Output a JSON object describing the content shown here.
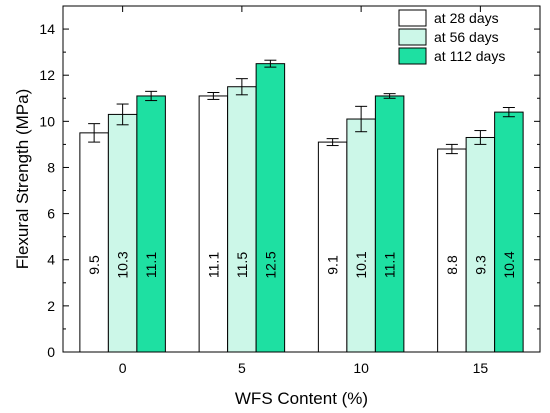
{
  "chart_data": {
    "type": "bar",
    "xlabel": "WFS Content (%)",
    "ylabel": "Flexural Strength (MPa)",
    "ylim": [
      0,
      15
    ],
    "yticks": [
      0,
      2,
      4,
      6,
      8,
      10,
      12,
      14
    ],
    "categories": [
      "0",
      "5",
      "10",
      "15"
    ],
    "legend_position": "top-right",
    "grid": false,
    "series": [
      {
        "name": "at 28 days",
        "color": "#ffffff",
        "values": [
          9.5,
          11.1,
          9.1,
          8.8
        ],
        "labels": [
          "9.5",
          "11.1",
          "9.1",
          "8.8"
        ],
        "errors": [
          0.4,
          0.15,
          0.15,
          0.2
        ]
      },
      {
        "name": "at 56 days",
        "color": "#ccf7e8",
        "values": [
          10.3,
          11.5,
          10.1,
          9.3
        ],
        "labels": [
          "10.3",
          "11.5",
          "10.1",
          "9.3"
        ],
        "errors": [
          0.45,
          0.35,
          0.55,
          0.3
        ]
      },
      {
        "name": "at 112 days",
        "color": "#1ee0a2",
        "values": [
          11.1,
          12.5,
          11.1,
          10.4
        ],
        "labels": [
          "11.1",
          "12.5",
          "11.1",
          "10.4"
        ],
        "errors": [
          0.2,
          0.15,
          0.1,
          0.2
        ]
      }
    ]
  }
}
